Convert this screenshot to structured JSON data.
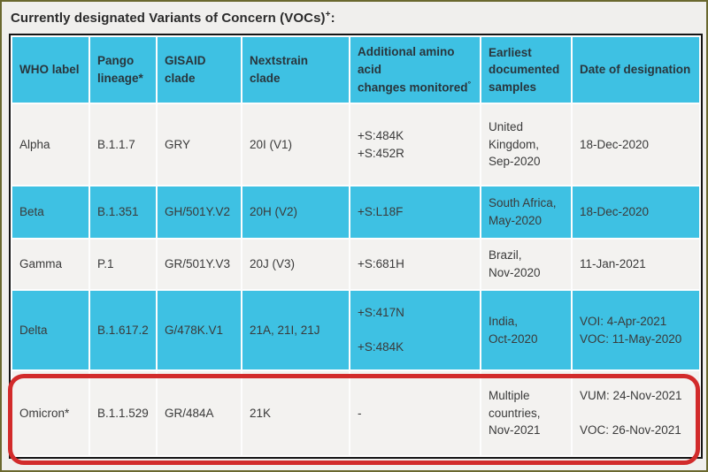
{
  "title": {
    "text": "Currently designated Variants of Concern (VOCs)",
    "sup": "+",
    "suffix": ":"
  },
  "colors": {
    "header_and_stripe_cyan": "#3ec1e3",
    "light_row": "#f3f2f0",
    "page_background": "#f0efed",
    "outer_frame_olive": "#6a682f",
    "highlight_red": "#d22b2b",
    "header_text": "#29363d",
    "body_text": "#3a3a3a",
    "table_border": "#141414"
  },
  "table": {
    "columns": [
      {
        "key": "who-label",
        "label": "WHO label",
        "sup": ""
      },
      {
        "key": "pango-lineage",
        "label": "Pango\nlineage*",
        "sup": ""
      },
      {
        "key": "gisaid-clade",
        "label": "GISAID\nclade",
        "sup": ""
      },
      {
        "key": "nextstrain-clade",
        "label": "Nextstrain clade",
        "sup": ""
      },
      {
        "key": "amino-acid-changes",
        "label": "Additional amino\nacid\nchanges monitored",
        "sup": "°"
      },
      {
        "key": "earliest-samples",
        "label": "Earliest\ndocumented\nsamples",
        "sup": ""
      },
      {
        "key": "date-of-designation",
        "label": "Date of designation",
        "sup": ""
      }
    ],
    "rows": [
      {
        "name": "alpha",
        "cells": [
          "Alpha",
          "B.1.1.7",
          "GRY",
          "20I (V1)",
          "+S:484K\n+S:452R",
          "United\nKingdom,\nSep-2020",
          "18-Dec-2020"
        ],
        "highlighted": false
      },
      {
        "name": "beta",
        "cells": [
          "Beta",
          "B.1.351",
          "GH/501Y.V2",
          "20H (V2)",
          "+S:L18F",
          "South Africa,\nMay-2020",
          "18-Dec-2020"
        ],
        "highlighted": false
      },
      {
        "name": "gamma",
        "cells": [
          "Gamma",
          "P.1",
          "GR/501Y.V3",
          "20J (V3)",
          "+S:681H",
          "Brazil,\nNov-2020",
          "11-Jan-2021"
        ],
        "highlighted": false
      },
      {
        "name": "delta",
        "cells": [
          "Delta",
          "B.1.617.2",
          "G/478K.V1",
          "21A, 21I, 21J",
          "+S:417N\n\n+S:484K",
          "India,\nOct-2020",
          "VOI: 4-Apr-2021\nVOC: 11-May-2020"
        ],
        "highlighted": false
      },
      {
        "name": "omicron",
        "cells": [
          "Omicron*",
          "B.1.1.529",
          "GR/484A",
          "21K",
          "-",
          "Multiple\ncountries,\nNov-2021",
          "VUM: 24-Nov-2021\n\nVOC: 26-Nov-2021"
        ],
        "highlighted": true
      }
    ]
  },
  "highlight": {
    "target_row": "Omicron*",
    "shape": "red rounded rectangle outline"
  }
}
